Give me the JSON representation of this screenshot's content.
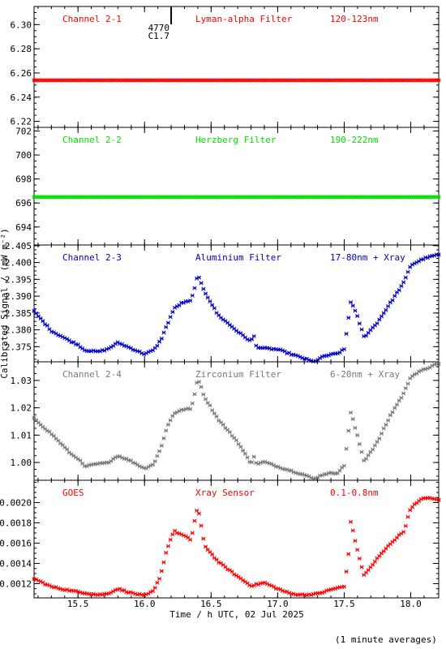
{
  "chart_data": [
    {
      "type": "scatter",
      "labels": [
        "Channel 2-1",
        "Lyman-alpha Filter",
        "120-123nm"
      ],
      "color": "#ff0000",
      "ylim": [
        6.215,
        6.315
      ],
      "yticks": [
        "6.22",
        "6.24",
        "6.26",
        "6.28",
        "6.30"
      ],
      "annotation": {
        "x": 16.2,
        "event_id": "4770",
        "flare_class": "C1.7"
      },
      "profile": {
        "kind": "flat",
        "level": 6.254
      }
    },
    {
      "type": "scatter",
      "labels": [
        "Channel 2-2",
        "Herzberg Filter",
        "190-222nm"
      ],
      "color": "#00e000",
      "ylim": [
        692.5,
        702.3
      ],
      "yticks": [
        "694",
        "696",
        "698",
        "700",
        "702"
      ],
      "profile": {
        "kind": "flat",
        "level": 696.5
      }
    },
    {
      "type": "scatter",
      "labels": [
        "Channel 2-3",
        "Aluminium Filter",
        "17-80nm + Xray"
      ],
      "color": "#0000cc",
      "ylim": [
        2.3705,
        2.4052
      ],
      "yticks": [
        "2.375",
        "2.380",
        "2.385",
        "2.390",
        "2.395",
        "2.400",
        "2.405"
      ],
      "profile": {
        "kind": "keyed",
        "keypoints": [
          [
            15.17,
            2.3855
          ],
          [
            15.3,
            2.3797
          ],
          [
            15.45,
            2.3765
          ],
          [
            15.5,
            2.3756
          ],
          [
            15.55,
            2.374
          ],
          [
            15.65,
            2.3735
          ],
          [
            15.72,
            2.3742
          ],
          [
            15.8,
            2.3762
          ],
          [
            15.9,
            2.3745
          ],
          [
            16.0,
            2.3728
          ],
          [
            16.07,
            2.374
          ],
          [
            16.12,
            2.3768
          ],
          [
            16.17,
            2.3815
          ],
          [
            16.22,
            2.3862
          ],
          [
            16.28,
            2.388
          ],
          [
            16.35,
            2.3886
          ],
          [
            16.38,
            2.3932
          ],
          [
            16.4,
            2.3962
          ],
          [
            16.45,
            2.3915
          ],
          [
            16.55,
            2.3845
          ],
          [
            16.7,
            2.3795
          ],
          [
            16.8,
            2.3765
          ],
          [
            16.82,
            2.3785
          ],
          [
            16.84,
            2.375
          ],
          [
            16.9,
            2.3745
          ],
          [
            17.0,
            2.3742
          ],
          [
            17.1,
            2.3728
          ],
          [
            17.2,
            2.3715
          ],
          [
            17.27,
            2.3705
          ],
          [
            17.35,
            2.3722
          ],
          [
            17.45,
            2.373
          ],
          [
            17.5,
            2.3742
          ],
          [
            17.55,
            2.3886
          ],
          [
            17.6,
            2.3838
          ],
          [
            17.65,
            2.3778
          ],
          [
            17.75,
            2.3822
          ],
          [
            17.85,
            2.3882
          ],
          [
            17.95,
            2.3942
          ],
          [
            18.0,
            2.3992
          ],
          [
            18.1,
            2.4012
          ],
          [
            18.2,
            2.4023
          ]
        ]
      }
    },
    {
      "type": "scatter",
      "labels": [
        "Channel 2-4",
        "Zirconium Filter",
        "6-20nm + Xray"
      ],
      "color": "#777777",
      "ylim": [
        0.9935,
        1.0368
      ],
      "yticks": [
        "1.00",
        "1.01",
        "1.02",
        "1.03"
      ],
      "profile": {
        "kind": "keyed",
        "keypoints": [
          [
            15.17,
            1.016
          ],
          [
            15.3,
            1.0105
          ],
          [
            15.45,
            1.003
          ],
          [
            15.5,
            1.0015
          ],
          [
            15.55,
            0.9985
          ],
          [
            15.65,
            0.9995
          ],
          [
            15.72,
            0.9998
          ],
          [
            15.8,
            1.0025
          ],
          [
            15.9,
            1.0005
          ],
          [
            16.0,
            0.9978
          ],
          [
            16.07,
            0.9995
          ],
          [
            16.12,
            1.005
          ],
          [
            16.17,
            1.013
          ],
          [
            16.22,
            1.018
          ],
          [
            16.3,
            1.0195
          ],
          [
            16.35,
            1.0195
          ],
          [
            16.38,
            1.026
          ],
          [
            16.4,
            1.031
          ],
          [
            16.45,
            1.024
          ],
          [
            16.55,
            1.016
          ],
          [
            16.7,
            1.0075
          ],
          [
            16.8,
            0.9995
          ],
          [
            16.82,
            1.0025
          ],
          [
            16.84,
            0.9995
          ],
          [
            16.9,
            1.0002
          ],
          [
            17.0,
            0.9985
          ],
          [
            17.1,
            0.997
          ],
          [
            17.2,
            0.9955
          ],
          [
            17.27,
            0.994
          ],
          [
            17.35,
            0.9958
          ],
          [
            17.45,
            0.9963
          ],
          [
            17.5,
            0.9988
          ],
          [
            17.55,
            1.0185
          ],
          [
            17.6,
            1.0095
          ],
          [
            17.65,
            1.0005
          ],
          [
            17.75,
            1.0075
          ],
          [
            17.85,
            1.0175
          ],
          [
            17.95,
            1.0255
          ],
          [
            18.0,
            1.0315
          ],
          [
            18.1,
            1.034
          ],
          [
            18.2,
            1.036
          ]
        ]
      }
    },
    {
      "type": "scatter",
      "labels": [
        "GOES",
        "Xray Sensor",
        "0.1-0.8nm"
      ],
      "color": "#ff0000",
      "ylim": [
        0.00106,
        0.00222
      ],
      "yticks": [
        "0.0012",
        "0.0014",
        "0.0016",
        "0.0018",
        "0.0020"
      ],
      "profile": {
        "kind": "keyed",
        "keypoints": [
          [
            15.17,
            0.00125
          ],
          [
            15.3,
            0.00117
          ],
          [
            15.45,
            0.00113
          ],
          [
            15.55,
            0.00111
          ],
          [
            15.65,
            0.00109
          ],
          [
            15.72,
            0.0011
          ],
          [
            15.8,
            0.00115
          ],
          [
            15.9,
            0.00111
          ],
          [
            16.0,
            0.00108
          ],
          [
            16.07,
            0.00113
          ],
          [
            16.12,
            0.00128
          ],
          [
            16.17,
            0.00155
          ],
          [
            16.22,
            0.00172
          ],
          [
            16.3,
            0.00167
          ],
          [
            16.35,
            0.00163
          ],
          [
            16.38,
            0.00185
          ],
          [
            16.4,
            0.00196
          ],
          [
            16.45,
            0.00158
          ],
          [
            16.55,
            0.00142
          ],
          [
            16.7,
            0.00127
          ],
          [
            16.8,
            0.00118
          ],
          [
            16.9,
            0.00121
          ],
          [
            17.0,
            0.00115
          ],
          [
            17.1,
            0.0011
          ],
          [
            17.2,
            0.00109
          ],
          [
            17.3,
            0.0011
          ],
          [
            17.42,
            0.00115
          ],
          [
            17.5,
            0.00117
          ],
          [
            17.53,
            0.00145
          ],
          [
            17.55,
            0.00182
          ],
          [
            17.6,
            0.00152
          ],
          [
            17.65,
            0.00128
          ],
          [
            17.75,
            0.00145
          ],
          [
            17.85,
            0.0016
          ],
          [
            17.95,
            0.00172
          ],
          [
            18.0,
            0.00195
          ],
          [
            18.1,
            0.00205
          ],
          [
            18.2,
            0.00203
          ]
        ]
      }
    }
  ],
  "xaxis": {
    "xlim": [
      15.17,
      18.21
    ],
    "ticks": [
      "15.5",
      "16.0",
      "16.5",
      "17.0",
      "17.5",
      "18.0"
    ],
    "label": "Time / h UTC, 02 Jul 2025"
  },
  "ylabel": "Calibrated Signal / (mW m⁻²)",
  "footnote": "(1 minute averages)"
}
